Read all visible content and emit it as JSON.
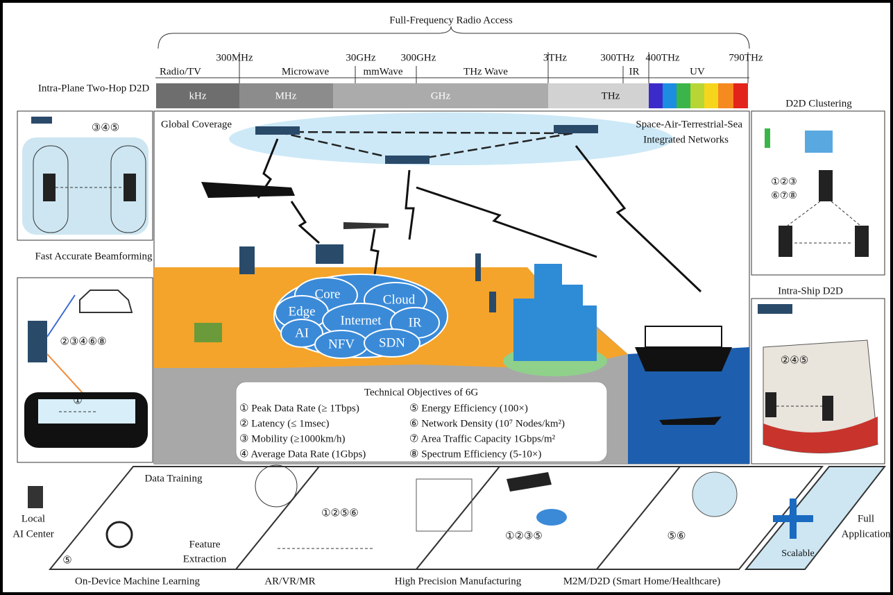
{
  "spectrum": {
    "title": "Full-Frequency Radio Access",
    "frequencies": [
      "300MHz",
      "30GHz",
      "300GHz",
      "3THz",
      "300THz",
      "400THz",
      "790THz"
    ],
    "bands": [
      "Radio/TV",
      "Microwave",
      "mmWave",
      "THz Wave",
      "IR",
      "UV"
    ],
    "scales": [
      "kHz",
      "MHz",
      "GHz",
      "THz"
    ]
  },
  "left_panels": [
    {
      "title": "Intra-Plane Two-Hop D2D",
      "objectives": [
        "③④⑤"
      ]
    },
    {
      "title": "Fast Accurate Beamforming",
      "objectives": [
        "②③④⑥⑧",
        "①"
      ]
    }
  ],
  "right_panels": [
    {
      "title": "D2D Clustering",
      "objectives": [
        "①②③",
        "⑥⑦⑧"
      ]
    },
    {
      "title": "Intra-Ship D2D",
      "objectives": [
        "②④⑤"
      ]
    }
  ],
  "center": {
    "coverage": "Global Coverage",
    "networks": [
      "Space-Air-Terrestrial-Sea",
      "Integrated Networks"
    ],
    "cloud": [
      "Core",
      "Cloud",
      "Edge",
      "Internet",
      "IR",
      "AI",
      "NFV",
      "SDN"
    ]
  },
  "objectives": {
    "title": "Technical Objectives of 6G",
    "items": [
      "① Peak Data Rate (≥ 1Tbps)",
      "② Latency (≤ 1msec)",
      "③ Mobility (≥1000km/h)",
      "④ Average Data Rate (1Gbps)",
      "⑤ Energy Efficiency (100×)",
      "⑥ Network Density (10⁷ Nodes/km²)",
      "⑦ Area Traffic Capacity 1Gbps/m²",
      "⑧ Spectrum Efficiency (5-10×)"
    ]
  },
  "applications": {
    "local_ai": [
      "Local",
      "AI Center",
      "⑤"
    ],
    "data_training": "Data Training",
    "feature_extraction": [
      "Feature",
      "Extraction"
    ],
    "captions": [
      "On-Device Machine Learning",
      "AR/VR/MR",
      "High Precision Manufacturing",
      "M2M/D2D (Smart Home/Healthcare)"
    ],
    "arvr_objectives": "①②⑤⑥",
    "manufacturing_objectives": "①②③⑤",
    "m2m_objectives": "⑤⑥",
    "scalable": "Scalable",
    "full_application": [
      "Full",
      "Application"
    ]
  }
}
